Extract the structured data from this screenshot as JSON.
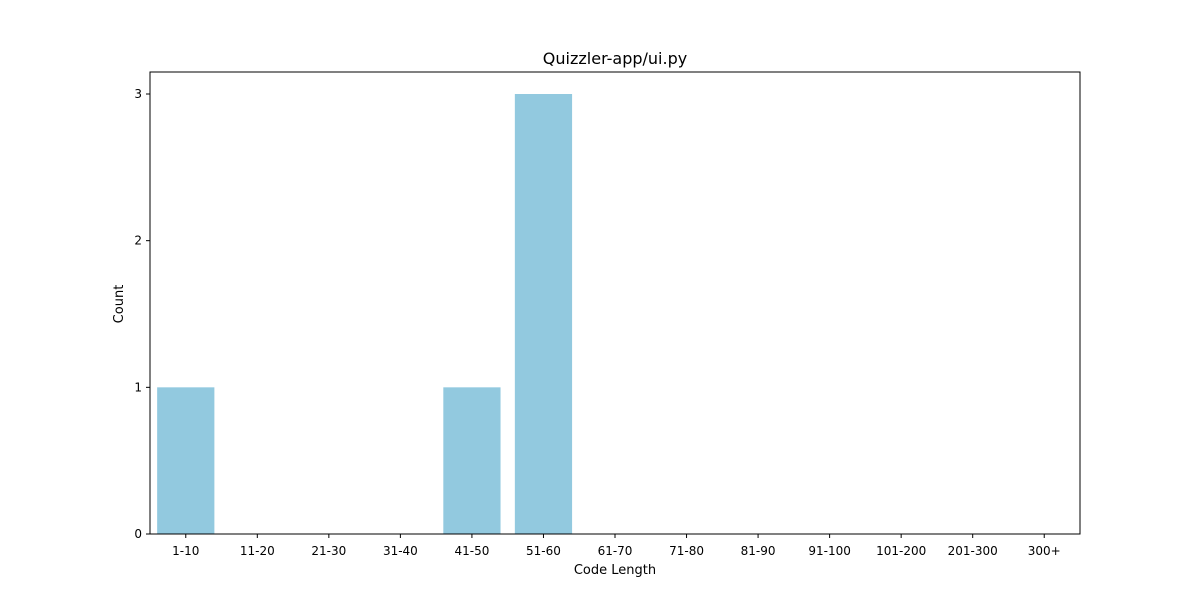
{
  "chart_data": {
    "type": "bar",
    "title": "Quizzler-app/ui.py",
    "xlabel": "Code Length",
    "ylabel": "Count",
    "categories": [
      "1-10",
      "11-20",
      "21-30",
      "31-40",
      "41-50",
      "51-60",
      "61-70",
      "71-80",
      "81-90",
      "91-100",
      "101-200",
      "201-300",
      "300+"
    ],
    "values": [
      1,
      0,
      0,
      0,
      1,
      3,
      0,
      0,
      0,
      0,
      0,
      0,
      0
    ],
    "ylim": [
      0,
      3.15
    ],
    "yticks": [
      "0",
      "1",
      "2",
      "3"
    ],
    "grid": false,
    "bar_color": "#92c9df"
  }
}
